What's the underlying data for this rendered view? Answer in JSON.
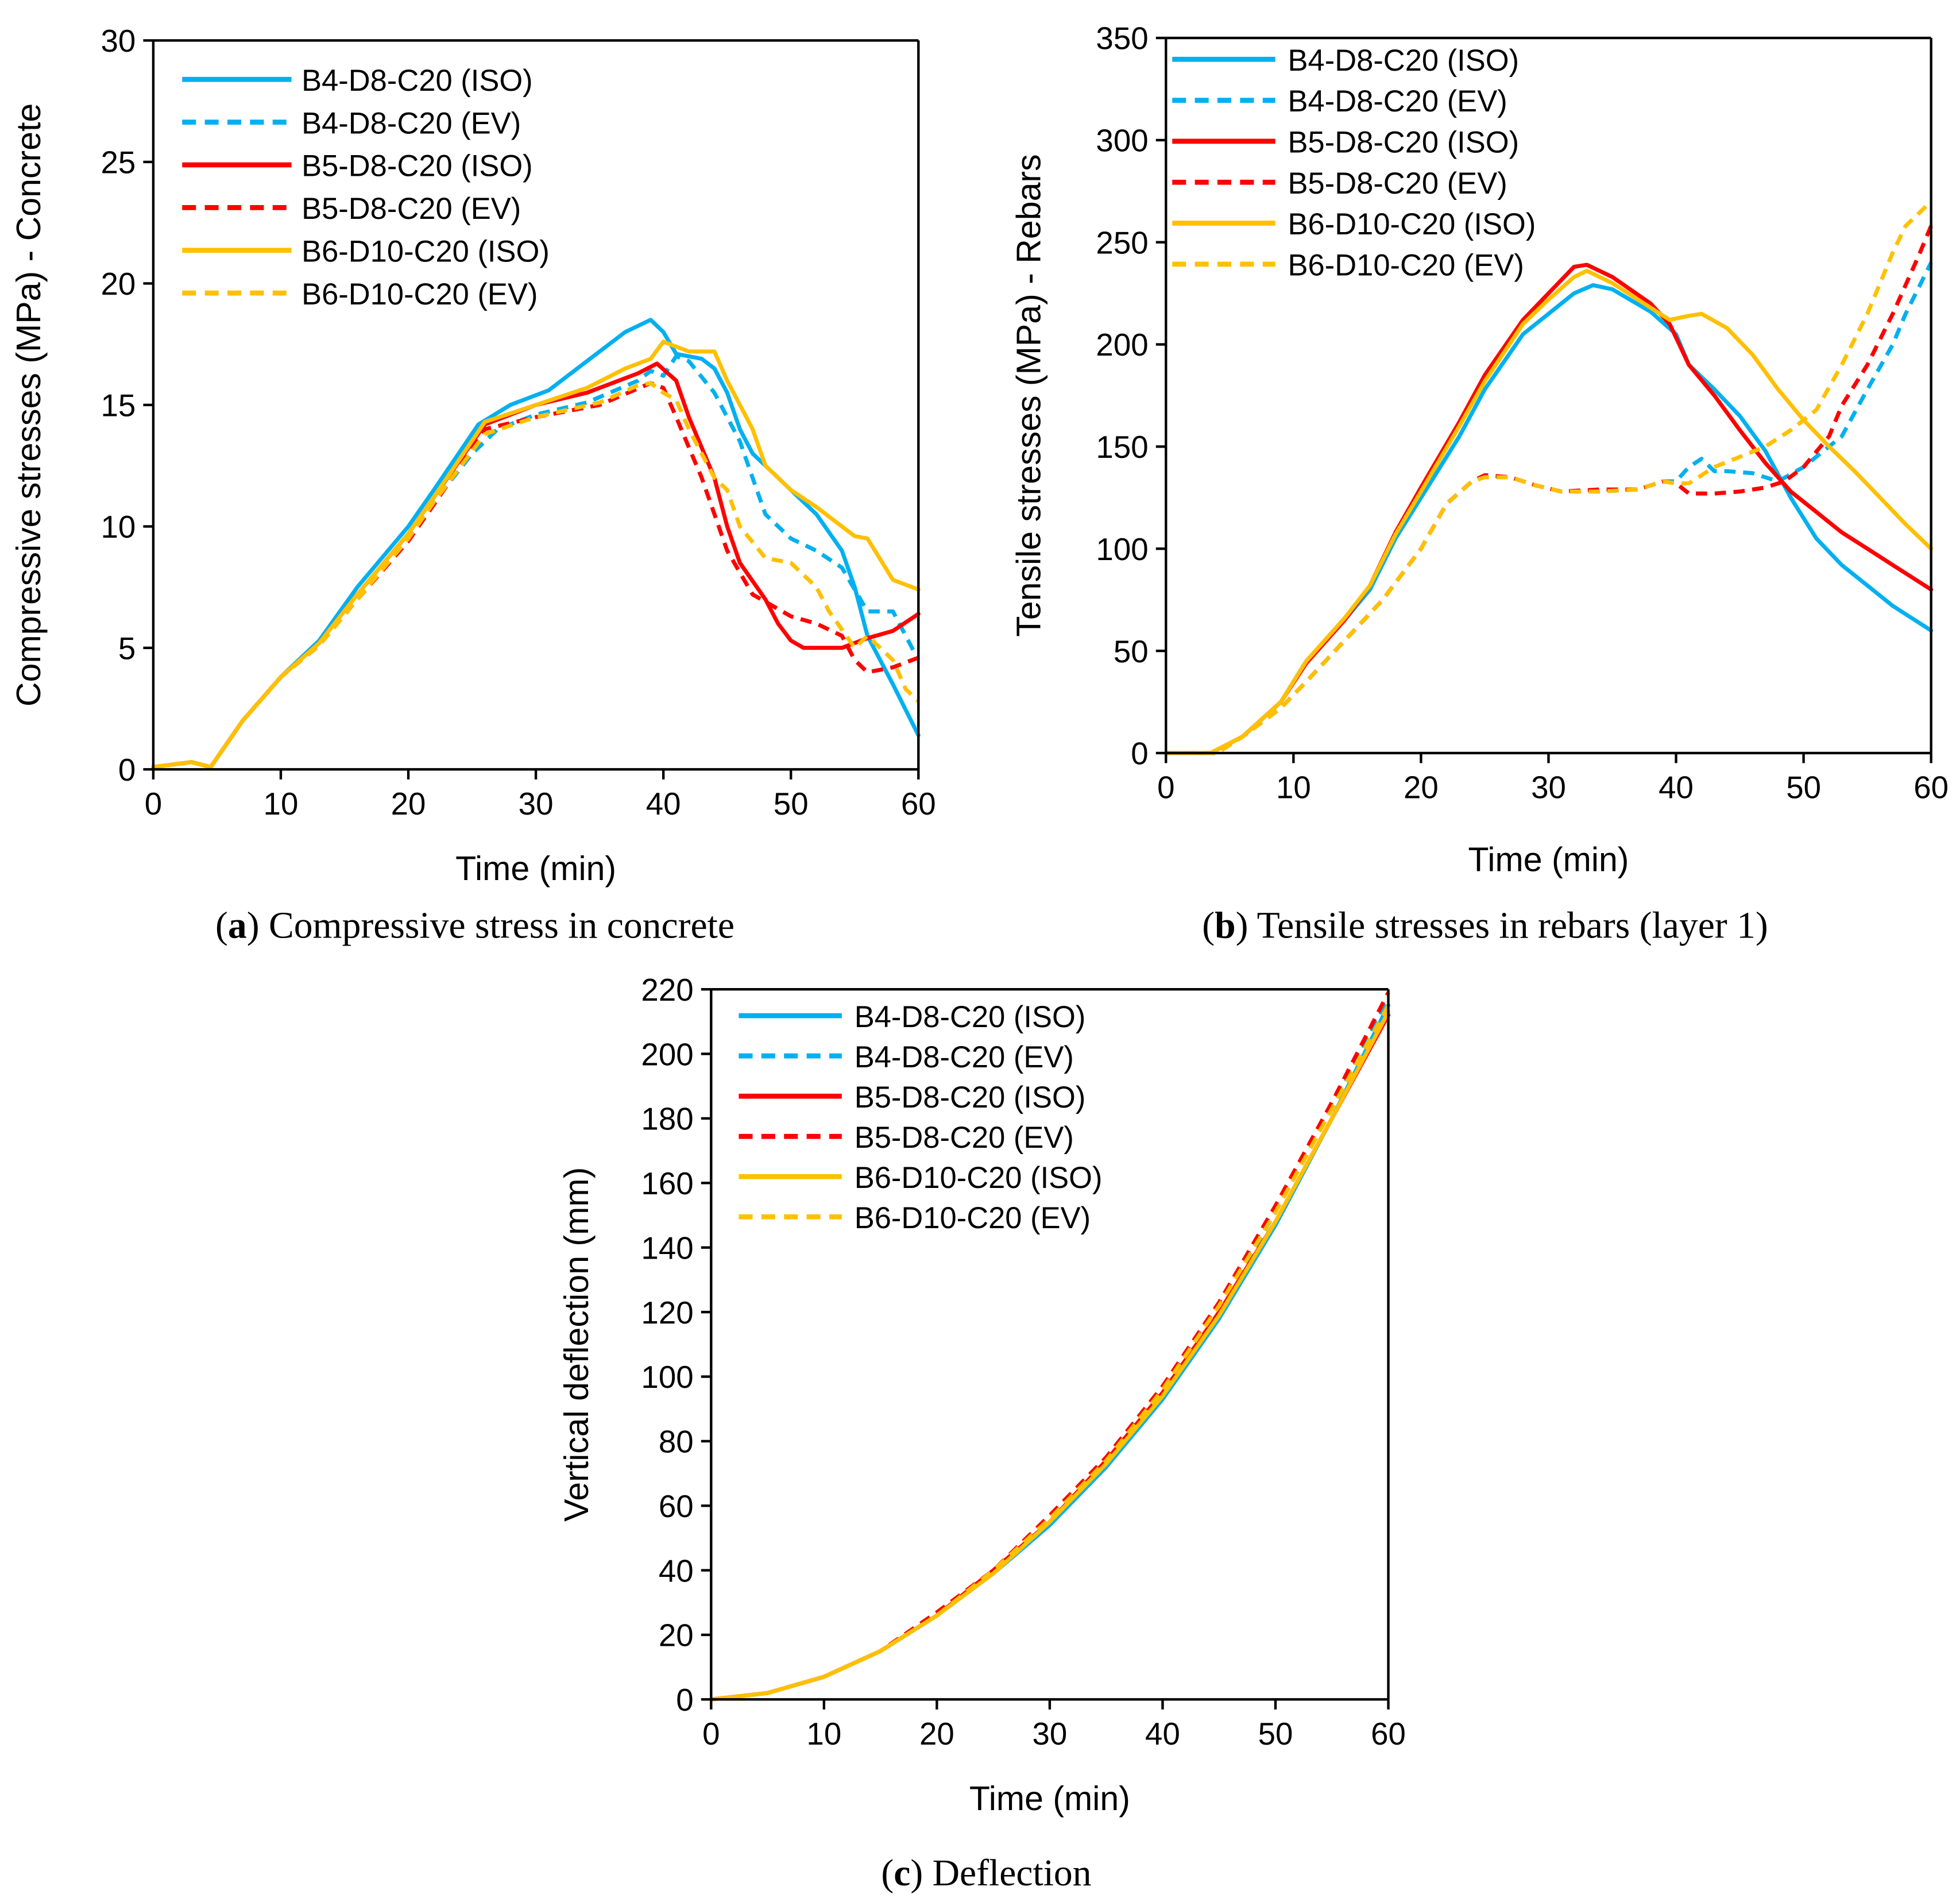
{
  "colors": {
    "B4": "#00B0F0",
    "B5": "#FF0000",
    "B6": "#FFC000"
  },
  "chart_data": [
    {
      "type": "line",
      "id": "a",
      "caption_letter": "a",
      "caption_text": " Compressive stress in concrete",
      "xlabel": "Time (min)",
      "ylabel": "Compressive stresses (MPa) - Concrete",
      "xlim": [
        0,
        60
      ],
      "ylim": [
        0,
        30
      ],
      "xticks": [
        0,
        10,
        20,
        30,
        40,
        50,
        60
      ],
      "yticks": [
        0,
        5,
        10,
        15,
        20,
        25,
        30
      ],
      "legend_position": "top-left",
      "series": [
        {
          "name": "B4-D8-C20 (ISO)",
          "color_key": "B4",
          "dashed": false,
          "x": [
            0,
            3,
            4.5,
            7,
            10,
            13,
            16,
            20,
            22,
            25.5,
            28,
            31,
            34,
            37,
            39,
            40,
            41,
            43,
            44,
            45,
            46,
            47,
            48,
            50,
            52,
            54,
            55,
            56,
            58,
            60
          ],
          "y": [
            0.1,
            0.3,
            0.1,
            2,
            3.8,
            5.3,
            7.5,
            10,
            11.5,
            14.2,
            15,
            15.6,
            16.8,
            18,
            18.5,
            18,
            17.1,
            16.9,
            16.5,
            15.5,
            14,
            13,
            12.5,
            11.5,
            10.5,
            9,
            7.5,
            5.5,
            3.5,
            1.4
          ]
        },
        {
          "name": "B4-D8-C20 (EV)",
          "color_key": "B4",
          "dashed": true,
          "x": [
            0,
            3,
            4.5,
            7,
            10,
            13,
            16,
            20,
            22,
            25,
            27,
            30,
            34,
            38,
            39,
            40,
            41,
            42,
            44,
            46,
            47,
            48,
            50,
            52,
            54,
            56,
            58,
            60
          ],
          "y": [
            0.1,
            0.3,
            0.1,
            2,
            3.8,
            5.2,
            7.2,
            9.6,
            11,
            13,
            14,
            14.6,
            15.1,
            16,
            16.4,
            16.2,
            17,
            16.8,
            15.5,
            13.5,
            12,
            10.5,
            9.5,
            9,
            8.3,
            6.5,
            6.5,
            4.5
          ]
        },
        {
          "name": "B5-D8-C20 (ISO)",
          "color_key": "B5",
          "dashed": false,
          "x": [
            0,
            3,
            4.5,
            7,
            10,
            13,
            16,
            20,
            22,
            26,
            30,
            34,
            38,
            39.5,
            41,
            42,
            44,
            45,
            46,
            48,
            49,
            50,
            51,
            52,
            54,
            56,
            58,
            60
          ],
          "y": [
            0.1,
            0.3,
            0.1,
            2,
            3.8,
            5.2,
            7.2,
            9.7,
            11.2,
            14.2,
            15,
            15.5,
            16.3,
            16.7,
            16,
            14.5,
            12,
            10,
            8.5,
            7,
            6,
            5.3,
            5,
            5,
            5,
            5.4,
            5.7,
            6.4
          ]
        },
        {
          "name": "B5-D8-C20 (EV)",
          "color_key": "B5",
          "dashed": true,
          "x": [
            0,
            3,
            4.5,
            7,
            10,
            13,
            16,
            20,
            22,
            26,
            30,
            35,
            39,
            40,
            41,
            43,
            45,
            47,
            50,
            52,
            54,
            55,
            56,
            58,
            60
          ],
          "y": [
            0.1,
            0.3,
            0.1,
            2,
            3.8,
            5.1,
            7,
            9.4,
            10.9,
            14,
            14.5,
            15,
            15.9,
            15.7,
            14.5,
            12,
            9,
            7.2,
            6.3,
            6,
            5.5,
            4.5,
            4,
            4.2,
            4.6
          ]
        },
        {
          "name": "B6-D10-C20 (ISO)",
          "color_key": "B6",
          "dashed": false,
          "x": [
            0,
            3,
            4.5,
            7,
            10,
            13,
            16,
            20,
            22,
            26,
            30,
            34,
            37,
            39,
            40,
            42,
            44,
            45,
            46,
            47,
            48,
            50,
            52,
            54,
            55,
            56,
            58,
            60
          ],
          "y": [
            0.1,
            0.3,
            0.1,
            2,
            3.8,
            5.2,
            7.2,
            9.7,
            11.2,
            14.3,
            15,
            15.7,
            16.5,
            16.9,
            17.6,
            17.2,
            17.2,
            16,
            15,
            14,
            12.5,
            11.5,
            10.8,
            10,
            9.6,
            9.5,
            7.8,
            7.4
          ]
        },
        {
          "name": "B6-D10-C20 (EV)",
          "color_key": "B6",
          "dashed": true,
          "x": [
            0,
            3,
            4.5,
            7,
            10,
            13,
            16,
            20,
            22,
            26,
            30,
            35,
            38,
            39,
            40,
            41,
            42,
            44,
            45,
            46,
            48,
            50,
            52,
            53,
            55,
            56,
            58,
            59,
            60
          ],
          "y": [
            0.1,
            0.3,
            0.1,
            2,
            3.8,
            5.1,
            7,
            9.5,
            11,
            13.8,
            14.5,
            15.1,
            15.8,
            15.9,
            15.5,
            15.2,
            14,
            12,
            11.5,
            10,
            8.7,
            8.5,
            7.5,
            6.5,
            5,
            5.5,
            4.5,
            3.3,
            2.8
          ]
        }
      ]
    },
    {
      "type": "line",
      "id": "b",
      "caption_letter": "b",
      "caption_text": " Tensile stresses in rebars (layer 1)",
      "xlabel": "Time (min)",
      "ylabel": "Tensile stresses (MPa) - Rebars",
      "xlim": [
        0,
        60
      ],
      "ylim": [
        0,
        350
      ],
      "xticks": [
        0,
        10,
        20,
        30,
        40,
        50,
        60
      ],
      "yticks": [
        0,
        50,
        100,
        150,
        200,
        250,
        300,
        350
      ],
      "legend_position": "top-left",
      "series": [
        {
          "name": "B4-D8-C20 (ISO)",
          "color_key": "B4",
          "dashed": false,
          "x": [
            0,
            3.5,
            6,
            9,
            11,
            14,
            16,
            18,
            20,
            23,
            25,
            28,
            30,
            32,
            33.5,
            35,
            38,
            40,
            41,
            43,
            45,
            47,
            49,
            51,
            53,
            55,
            57,
            60
          ],
          "y": [
            0,
            0,
            8,
            25,
            45,
            65,
            80,
            105,
            125,
            155,
            178,
            205,
            215,
            225,
            229,
            227,
            216,
            205,
            190,
            178,
            165,
            148,
            125,
            105,
            92,
            82,
            72,
            60
          ]
        },
        {
          "name": "B4-D8-C20 (EV)",
          "color_key": "B4",
          "dashed": true,
          "x": [
            0,
            4,
            6,
            9,
            11,
            14,
            17,
            20,
            22,
            24,
            25,
            27,
            29,
            31,
            34,
            37,
            39,
            40,
            41,
            42,
            43,
            44,
            46,
            48,
            50,
            52,
            53,
            55,
            57,
            58,
            60
          ],
          "y": [
            0,
            0,
            8,
            22,
            35,
            55,
            75,
            100,
            122,
            133,
            135,
            135,
            131,
            128,
            128,
            129,
            133,
            133,
            140,
            144,
            138,
            138,
            137,
            133,
            140,
            150,
            155,
            178,
            200,
            215,
            240
          ]
        },
        {
          "name": "B5-D8-C20 (ISO)",
          "color_key": "B5",
          "dashed": false,
          "x": [
            0,
            3.5,
            6,
            9,
            11,
            14,
            16,
            18,
            20,
            23,
            25,
            28,
            30,
            32,
            33,
            35,
            38,
            39.5,
            41,
            43,
            45,
            47,
            49,
            51,
            53,
            55,
            57,
            60
          ],
          "y": [
            0,
            0,
            8,
            25,
            44,
            65,
            82,
            108,
            130,
            162,
            185,
            212,
            225,
            238,
            239,
            233,
            220,
            210,
            190,
            175,
            158,
            142,
            128,
            118,
            108,
            100,
            92,
            80
          ]
        },
        {
          "name": "B5-D8-C20 (EV)",
          "color_key": "B5",
          "dashed": true,
          "x": [
            0,
            4,
            6,
            9,
            11,
            14,
            17,
            20,
            22,
            24,
            25,
            27,
            29,
            31,
            34,
            37,
            39,
            40,
            41,
            43,
            45,
            47,
            48.5,
            50,
            52,
            53,
            55,
            57,
            59,
            60
          ],
          "y": [
            0,
            0,
            8,
            22,
            35,
            55,
            75,
            100,
            122,
            133,
            136,
            135,
            131,
            128,
            129,
            129,
            133,
            132,
            127,
            127,
            128,
            130,
            133,
            140,
            155,
            170,
            190,
            215,
            243,
            258
          ]
        },
        {
          "name": "B6-D10-C20 (ISO)",
          "color_key": "B6",
          "dashed": false,
          "x": [
            0,
            3.5,
            6,
            9,
            11,
            14,
            16,
            18,
            20,
            23,
            25,
            28,
            30,
            32,
            33,
            35,
            38,
            39.5,
            41,
            42,
            44,
            46,
            48,
            50,
            52,
            54,
            56,
            58,
            60
          ],
          "y": [
            0,
            0,
            8,
            25,
            45,
            66,
            82,
            107,
            128,
            160,
            182,
            210,
            222,
            233,
            236,
            230,
            218,
            212,
            214,
            215,
            208,
            195,
            178,
            163,
            150,
            138,
            125,
            112,
            100
          ]
        },
        {
          "name": "B6-D10-C20 (EV)",
          "color_key": "B6",
          "dashed": true,
          "x": [
            0,
            4,
            6,
            9,
            11,
            14,
            17,
            20,
            22,
            24,
            25,
            27,
            29,
            31,
            34,
            37,
            39,
            40,
            41,
            43,
            45,
            47,
            49,
            51,
            53,
            55,
            57,
            58,
            60
          ],
          "y": [
            0,
            0,
            8,
            22,
            35,
            55,
            75,
            100,
            122,
            133,
            135,
            135,
            131,
            128,
            128,
            129,
            133,
            132,
            132,
            140,
            145,
            150,
            158,
            168,
            190,
            215,
            245,
            258,
            270
          ]
        }
      ]
    },
    {
      "type": "line",
      "id": "c",
      "caption_letter": "c",
      "caption_text": " Deflection",
      "xlabel": "Time (min)",
      "ylabel": "Vertical deflection (mm)",
      "xlim": [
        0,
        60
      ],
      "ylim": [
        0,
        220
      ],
      "xticks": [
        0,
        10,
        20,
        30,
        40,
        50,
        60
      ],
      "yticks": [
        0,
        20,
        40,
        60,
        80,
        100,
        120,
        140,
        160,
        180,
        200,
        220
      ],
      "legend_position": "top-left",
      "series": [
        {
          "name": "B4-D8-C20 (ISO)",
          "color_key": "B4",
          "dashed": false,
          "x": [
            0,
            5,
            10,
            15,
            20,
            25,
            30,
            35,
            40,
            45,
            50,
            55,
            60
          ],
          "y": [
            0,
            2,
            7,
            15,
            26,
            39,
            54,
            72,
            93,
            118,
            147,
            180,
            215
          ]
        },
        {
          "name": "B4-D8-C20 (EV)",
          "color_key": "B4",
          "dashed": true,
          "x": [
            0,
            5,
            10,
            15,
            20,
            25,
            30,
            35,
            40,
            45,
            50,
            55,
            60
          ],
          "y": [
            0,
            2,
            7,
            15,
            26,
            40,
            56,
            74,
            96,
            121,
            151,
            183,
            217
          ]
        },
        {
          "name": "B5-D8-C20 (ISO)",
          "color_key": "B5",
          "dashed": false,
          "x": [
            0,
            5,
            10,
            15,
            20,
            25,
            30,
            35,
            40,
            45,
            50,
            55,
            60
          ],
          "y": [
            0,
            2,
            7,
            15,
            26,
            40,
            55,
            74,
            95,
            120,
            148,
            180,
            212
          ]
        },
        {
          "name": "B5-D8-C20 (EV)",
          "color_key": "B5",
          "dashed": true,
          "x": [
            0,
            5,
            10,
            15,
            20,
            25,
            30,
            35,
            40,
            45,
            50,
            55,
            60
          ],
          "y": [
            0,
            2,
            7,
            15,
            27,
            40,
            57,
            75,
            97,
            123,
            153,
            185,
            219
          ]
        },
        {
          "name": "B6-D10-C20 (ISO)",
          "color_key": "B6",
          "dashed": false,
          "x": [
            0,
            5,
            10,
            15,
            20,
            25,
            30,
            35,
            40,
            45,
            50,
            55,
            60
          ],
          "y": [
            0,
            2,
            7,
            15,
            26,
            39,
            55,
            73,
            94,
            119,
            148,
            180,
            213
          ]
        },
        {
          "name": "B6-D10-C20 (EV)",
          "color_key": "B6",
          "dashed": true,
          "x": [
            0,
            5,
            10,
            15,
            20,
            25,
            30,
            35,
            40,
            45,
            50,
            55,
            60
          ],
          "y": [
            0,
            2,
            7,
            15,
            26,
            40,
            56,
            74,
            96,
            122,
            151,
            183,
            215
          ]
        }
      ]
    }
  ]
}
